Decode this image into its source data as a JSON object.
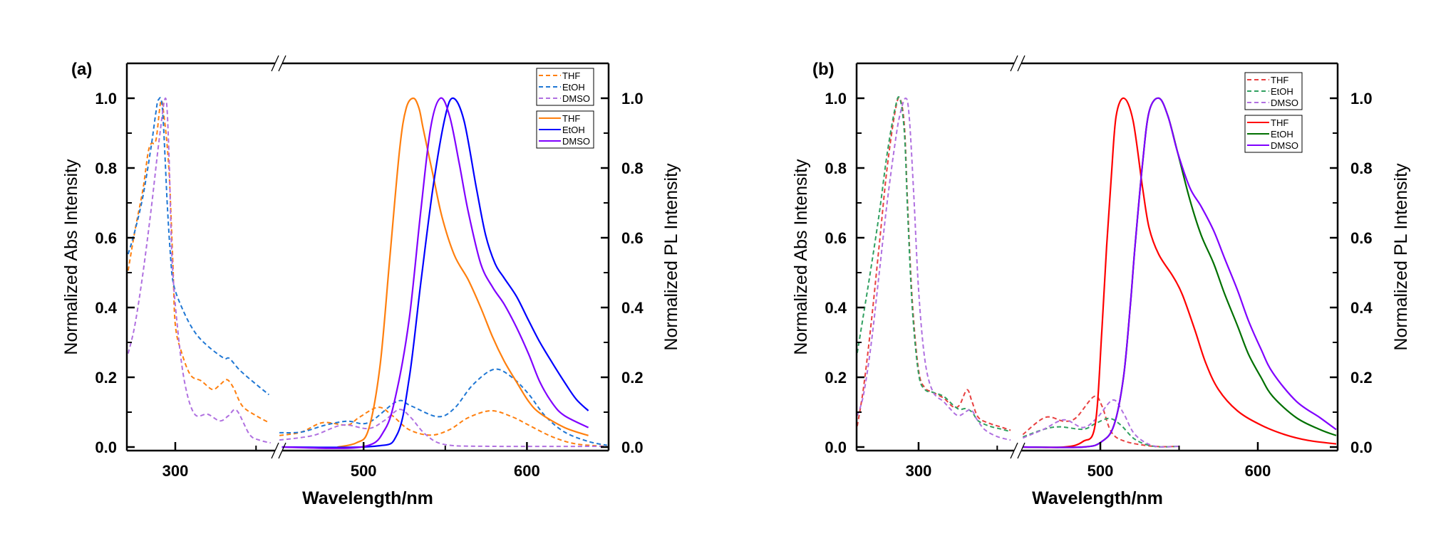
{
  "chart_data": [
    {
      "type": "line",
      "panel_label": "(a)",
      "xlabel": "Wavelength/nm",
      "ylabel_left": "Normalized Abs Intensity",
      "ylabel_right": "Normalized PL Intensity",
      "x_segments": [
        [
          270,
          364
        ],
        [
          448,
          650
        ]
      ],
      "x_ticks_major": [
        300,
        500,
        600
      ],
      "x_ticks_minor": [
        350,
        550
      ],
      "x_tick_labels": [
        "300",
        "500",
        "600"
      ],
      "ylim": [
        0,
        1.1
      ],
      "y_ticks": [
        0.0,
        0.2,
        0.4,
        0.6,
        0.8,
        1.0
      ],
      "y_tick_labels": [
        "0.0",
        "0.2",
        "0.4",
        "0.6",
        "0.8",
        "1.0"
      ],
      "axis_break": true,
      "legend_position": "top-right",
      "legend_groups": [
        {
          "style": "dashed",
          "entries": [
            "THF",
            "EtOH",
            "DMSO"
          ]
        },
        {
          "style": "solid",
          "entries": [
            "THF",
            "EtOH",
            "DMSO"
          ]
        }
      ],
      "series": [
        {
          "name": "THF",
          "kind": "Abs",
          "style": "dashed",
          "color": "#ff7f0e",
          "x": [
            270.8,
            275,
            280,
            283,
            285,
            288,
            291,
            293,
            296,
            298.5,
            300,
            304,
            309.5,
            316,
            323,
            328,
            332,
            336,
            341.5,
            350,
            358,
            448.5,
            462,
            475,
            490,
            497,
            509,
            517.6,
            527.8,
            541,
            552.7,
            564,
            578,
            590.8,
            601,
            615.7,
            630,
            648
          ],
          "y": [
            0.506,
            0.62,
            0.74,
            0.84,
            0.87,
            0.88,
            0.99,
            0.95,
            0.8,
            0.526,
            0.35,
            0.27,
            0.206,
            0.19,
            0.165,
            0.18,
            0.193,
            0.17,
            0.118,
            0.09,
            0.07,
            0.033,
            0.043,
            0.07,
            0.063,
            0.084,
            0.114,
            0.09,
            0.05,
            0.034,
            0.05,
            0.084,
            0.104,
            0.087,
            0.063,
            0.029,
            0.009,
            0.002
          ]
        },
        {
          "name": "EtOH",
          "kind": "Abs",
          "style": "dashed",
          "color": "#1f77d4",
          "x": [
            270.8,
            275,
            280,
            285,
            288,
            289.5,
            292,
            295,
            297,
            299,
            305,
            312,
            320,
            330,
            333.5,
            340,
            350,
            358,
            448.5,
            462,
            476.6,
            490,
            503,
            520.5,
            529,
            545.4,
            555.6,
            567,
            580,
            590.8,
            601,
            611,
            623,
            637.6,
            649
          ],
          "y": [
            0.553,
            0.62,
            0.72,
            0.86,
            0.96,
            0.995,
            0.97,
            0.7,
            0.55,
            0.465,
            0.39,
            0.33,
            0.29,
            0.255,
            0.254,
            0.22,
            0.18,
            0.15,
            0.041,
            0.043,
            0.063,
            0.074,
            0.07,
            0.131,
            0.118,
            0.087,
            0.111,
            0.179,
            0.223,
            0.2,
            0.152,
            0.09,
            0.043,
            0.016,
            0.005
          ]
        },
        {
          "name": "DMSO",
          "kind": "Abs",
          "style": "dashed",
          "color": "#b070e0",
          "x": [
            270.8,
            275,
            280,
            285,
            290,
            294,
            296,
            298,
            301.5,
            306,
            312,
            320,
            327.7,
            333,
            338,
            346,
            352,
            359,
            448.5,
            469,
            487,
            503,
            513,
            522,
            529,
            538,
            550,
            579,
            649
          ],
          "y": [
            0.268,
            0.35,
            0.5,
            0.68,
            0.88,
            1.0,
            0.85,
            0.54,
            0.336,
            0.18,
            0.094,
            0.094,
            0.075,
            0.09,
            0.105,
            0.036,
            0.02,
            0.012,
            0.02,
            0.033,
            0.063,
            0.053,
            0.077,
            0.108,
            0.084,
            0.036,
            0.007,
            0.002,
            0.002
          ]
        },
        {
          "name": "THF",
          "kind": "PL",
          "style": "solid",
          "color": "#ff7f0e",
          "x": [
            484,
            495.6,
            503,
            510,
            516,
            522,
            526,
            530.5,
            534,
            536.6,
            542.5,
            548,
            555.6,
            564,
            571.7,
            579,
            586,
            593.7,
            601,
            608,
            623,
            637.6,
            650.5
          ],
          "y": [
            0.0,
            0.012,
            0.05,
            0.23,
            0.54,
            0.85,
            0.97,
            1.0,
            0.97,
            0.91,
            0.78,
            0.66,
            0.55,
            0.48,
            0.4,
            0.315,
            0.247,
            0.186,
            0.131,
            0.097,
            0.056,
            0.033,
            0.019
          ]
        },
        {
          "name": "EtOH",
          "kind": "PL",
          "style": "solid",
          "color": "#0000ff",
          "x": [
            450,
            506,
            520.5,
            528,
            535,
            542.5,
            550,
            555,
            561.5,
            569,
            574.7,
            580.5,
            586,
            593.7,
            601,
            608,
            615.7,
            623,
            630,
            637.6,
            650.5
          ],
          "y": [
            0.0,
            0.002,
            0.036,
            0.2,
            0.47,
            0.744,
            0.948,
            1.0,
            0.935,
            0.744,
            0.608,
            0.526,
            0.485,
            0.431,
            0.363,
            0.3,
            0.24,
            0.186,
            0.138,
            0.104,
            0.074
          ]
        },
        {
          "name": "DMSO",
          "kind": "PL",
          "style": "solid",
          "color": "#8000ff",
          "x": [
            450,
            498.5,
            513,
            520.5,
            528,
            535,
            541,
            547,
            552.7,
            558.6,
            564,
            571.7,
            579,
            586,
            593.7,
            601,
            608,
            615.7,
            623,
            637.6,
            650.5
          ],
          "y": [
            0.0,
            0.0,
            0.05,
            0.165,
            0.37,
            0.676,
            0.914,
            1.0,
            0.948,
            0.812,
            0.676,
            0.526,
            0.458,
            0.41,
            0.342,
            0.267,
            0.186,
            0.125,
            0.09,
            0.056,
            0.042
          ]
        }
      ]
    },
    {
      "type": "line",
      "panel_label": "(b)",
      "xlabel": "Wavelength/nm",
      "ylabel_left": "Normalized Abs Intensity",
      "ylabel_right": "Normalized PL Intensity",
      "x_segments": [
        [
          260.6,
          363
        ],
        [
          447.5,
          650.7
        ]
      ],
      "x_ticks_major": [
        300,
        500,
        600
      ],
      "x_ticks_minor": [
        350,
        550
      ],
      "x_tick_labels": [
        "300",
        "500",
        "600"
      ],
      "ylim": [
        0,
        1.1
      ],
      "y_ticks": [
        0.0,
        0.2,
        0.4,
        0.6,
        0.8,
        1.0
      ],
      "y_tick_labels": [
        "0.0",
        "0.2",
        "0.4",
        "0.6",
        "0.8",
        "1.0"
      ],
      "axis_break": true,
      "legend_position": "top-right",
      "legend_groups": [
        {
          "style": "dashed",
          "entries": [
            "THF",
            "EtOH",
            "DMSO"
          ]
        },
        {
          "style": "solid",
          "entries": [
            "THF",
            "EtOH",
            "DMSO"
          ]
        }
      ],
      "series": [
        {
          "name": "THF",
          "kind": "Abs",
          "style": "dashed",
          "color": "#e84040",
          "x": [
            261,
            265,
            270,
            275,
            280,
            285,
            288,
            291,
            293,
            296,
            300,
            304,
            309,
            316,
            322,
            326,
            330.8,
            334,
            338,
            345,
            352,
            358.5,
            450.8,
            465,
            477,
            484.6,
            496,
            501,
            507,
            516,
            534,
            550
          ],
          "y": [
            0.06,
            0.17,
            0.36,
            0.58,
            0.8,
            0.96,
            1.0,
            0.92,
            0.7,
            0.42,
            0.22,
            0.17,
            0.157,
            0.14,
            0.115,
            0.12,
            0.164,
            0.13,
            0.085,
            0.068,
            0.058,
            0.048,
            0.036,
            0.085,
            0.074,
            0.084,
            0.145,
            0.118,
            0.043,
            0.016,
            0.002,
            0.002
          ]
        },
        {
          "name": "EtOH",
          "kind": "Abs",
          "style": "dashed",
          "color": "#30a060",
          "x": [
            261,
            265,
            270,
            275,
            280,
            285,
            288,
            291,
            293,
            296,
            300,
            304,
            309,
            316,
            322,
            326,
            330,
            334,
            338,
            345,
            352,
            358.5,
            450.8,
            463.6,
            474,
            489,
            496.7,
            505.7,
            513,
            522,
            534,
            550
          ],
          "y": [
            0.27,
            0.38,
            0.52,
            0.67,
            0.84,
            0.97,
            1.0,
            0.9,
            0.68,
            0.4,
            0.21,
            0.165,
            0.157,
            0.145,
            0.12,
            0.108,
            0.11,
            0.1,
            0.075,
            0.06,
            0.052,
            0.044,
            0.029,
            0.05,
            0.058,
            0.051,
            0.067,
            0.082,
            0.063,
            0.022,
            0.002,
            0.002
          ]
        },
        {
          "name": "DMSO",
          "kind": "Abs",
          "style": "dashed",
          "color": "#b070e0",
          "x": [
            261,
            265,
            270,
            275,
            280,
            285,
            288,
            291.7,
            294,
            297,
            300,
            304,
            309,
            316,
            320,
            325.5,
            333,
            337,
            342,
            350,
            358.5,
            450.8,
            463.6,
            477,
            489,
            498,
            508,
            514.7,
            522,
            534,
            550
          ],
          "y": [
            0.09,
            0.15,
            0.3,
            0.5,
            0.7,
            0.87,
            0.95,
            1.0,
            0.95,
            0.72,
            0.45,
            0.25,
            0.16,
            0.13,
            0.11,
            0.09,
            0.107,
            0.08,
            0.05,
            0.03,
            0.02,
            0.026,
            0.05,
            0.078,
            0.056,
            0.084,
            0.135,
            0.097,
            0.036,
            0.003,
            0.002
          ]
        },
        {
          "name": "THF",
          "kind": "PL",
          "style": "solid",
          "color": "#ff0000",
          "x": [
            450.8,
            477,
            489,
            496.7,
            501,
            504,
            507,
            510,
            515,
            520.8,
            526.8,
            531,
            537,
            546,
            552,
            560,
            567,
            575,
            587,
            602,
            617,
            632,
            649.8
          ],
          "y": [
            0.0,
            0.0,
            0.016,
            0.063,
            0.336,
            0.574,
            0.778,
            0.948,
            1.0,
            0.935,
            0.744,
            0.628,
            0.553,
            0.49,
            0.438,
            0.336,
            0.24,
            0.165,
            0.104,
            0.063,
            0.036,
            0.019,
            0.009
          ]
        },
        {
          "name": "EtOH",
          "kind": "PL",
          "style": "solid",
          "color": "#007000",
          "x": [
            450.8,
            489,
            501,
            508.7,
            514.7,
            519,
            522,
            526.8,
            531,
            537.3,
            543,
            549,
            556.8,
            564,
            572,
            579,
            587,
            594,
            602,
            609.5,
            624.5,
            639.5,
            649.8
          ],
          "y": [
            0.0,
            0.0,
            0.016,
            0.063,
            0.2,
            0.404,
            0.574,
            0.812,
            0.962,
            1.0,
            0.948,
            0.846,
            0.71,
            0.608,
            0.526,
            0.438,
            0.349,
            0.267,
            0.2,
            0.145,
            0.084,
            0.05,
            0.033
          ]
        },
        {
          "name": "DMSO",
          "kind": "PL",
          "style": "solid",
          "color": "#8000ff",
          "x": [
            450.8,
            489,
            501,
            508.7,
            514.7,
            519,
            522,
            526.8,
            531,
            537.3,
            543,
            549,
            556.8,
            564,
            572,
            579,
            587,
            594,
            602,
            609.5,
            624.5,
            639.5,
            649.8
          ],
          "y": [
            0.0,
            0.0,
            0.016,
            0.063,
            0.2,
            0.404,
            0.574,
            0.812,
            0.962,
            1.0,
            0.948,
            0.846,
            0.744,
            0.69,
            0.62,
            0.54,
            0.451,
            0.363,
            0.281,
            0.213,
            0.131,
            0.084,
            0.05
          ]
        }
      ]
    }
  ]
}
